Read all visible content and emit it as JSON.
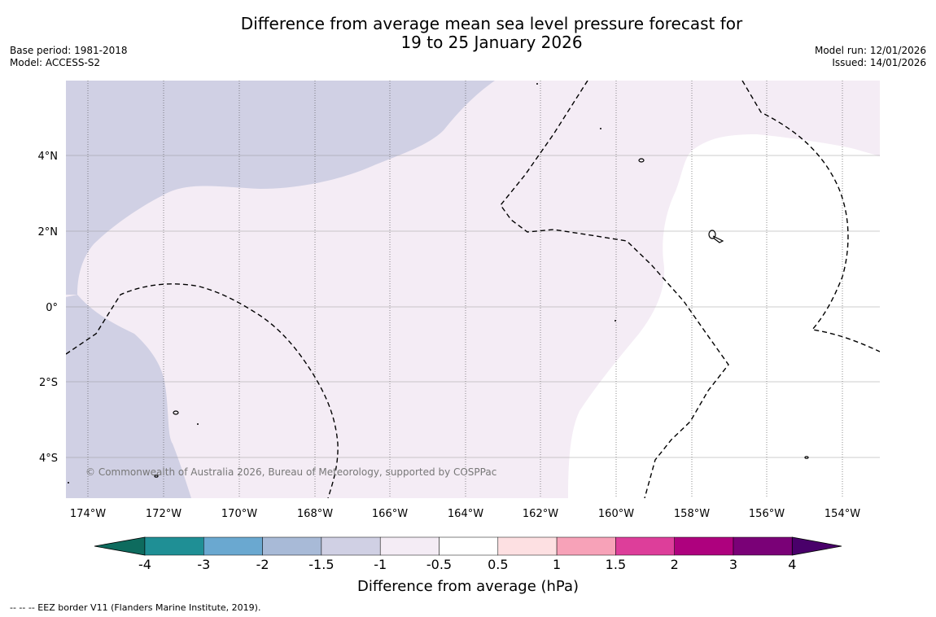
{
  "header": {
    "title_line1": "Difference from average mean sea level pressure forecast for",
    "title_line2": "19 to 25 January 2026",
    "base_period": "Base period: 1981-2018",
    "model": "Model: ACCESS-S2",
    "model_run": "Model run: 12/01/2026",
    "issued": "Issued: 14/01/2026"
  },
  "map": {
    "copyright": "© Commonwealth of Australia 2026, Bureau of Meteorology, supported by COSPPac",
    "lon_labels": [
      "174°W",
      "172°W",
      "170°W",
      "168°W",
      "166°W",
      "164°W",
      "162°W",
      "160°W",
      "158°W",
      "156°W",
      "154°W"
    ],
    "lat_labels": [
      "4°N",
      "2°N",
      "0°",
      "2°S",
      "4°S"
    ],
    "colors": {
      "minus_1_5_to_minus_1": "#d0d0e4",
      "minus_1_to_minus_0_5": "#f4ecf5",
      "neutral": "#ffffff"
    }
  },
  "colorbar": {
    "title": "Difference from average (hPa)",
    "tick_labels": [
      "-4",
      "-3",
      "-2",
      "-1.5",
      "-1",
      "-0.5",
      "0.5",
      "1",
      "1.5",
      "2",
      "3",
      "4"
    ],
    "colors": [
      "#0e6b5e",
      "#1f8f95",
      "#6aa8d0",
      "#a8bad7",
      "#d0d0e4",
      "#f4ecf5",
      "#ffffff",
      "#fde0e2",
      "#f7a2b8",
      "#dd3e9a",
      "#ae017e",
      "#7a0177",
      "#49006a"
    ]
  },
  "footnote": "--  --  -- EEZ border V11 (Flanders Marine Institute, 2019)."
}
